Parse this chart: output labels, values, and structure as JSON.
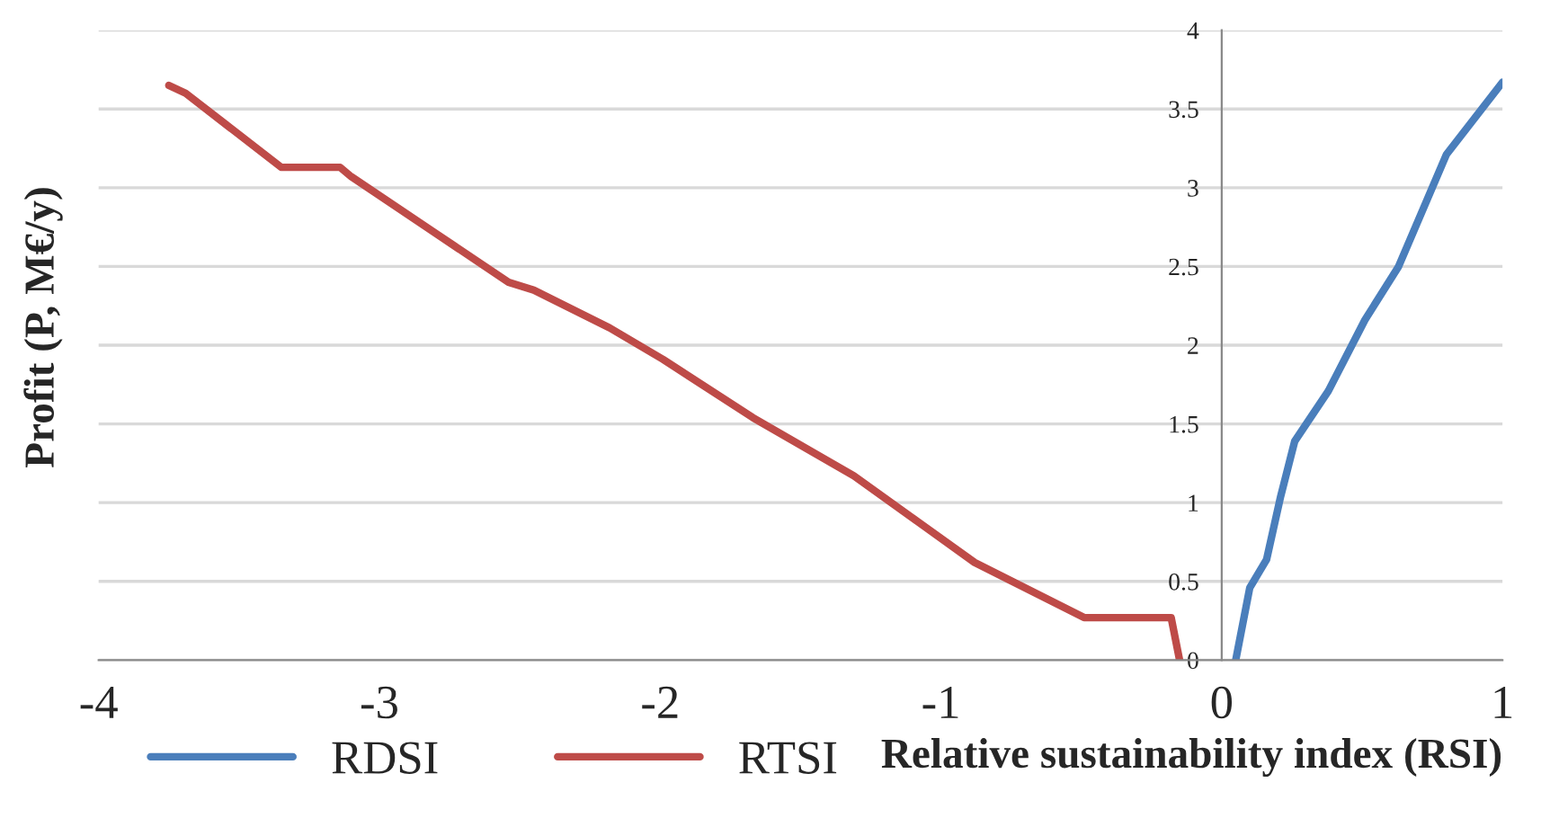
{
  "chart_data": {
    "type": "line",
    "xlabel": "Relative sustainability index (RSI)",
    "ylabel": "Profit (P, M€/y)",
    "xlim": [
      -4,
      1
    ],
    "xticks": [
      -4,
      -3,
      -2,
      -1,
      0,
      1
    ],
    "ylim": [
      0,
      4
    ],
    "yticks": [
      0,
      0.5,
      1,
      1.5,
      2,
      2.5,
      3,
      3.5,
      4
    ],
    "grid": "y",
    "legend": "bottom left",
    "marker": "none",
    "line_style": "solid",
    "series": [
      {
        "name": "RDSI",
        "color": "#4a7ebb",
        "x": [
          0.05,
          0.1,
          0.16,
          0.21,
          0.26,
          0.38,
          0.51,
          0.63,
          0.8,
          1.0
        ],
        "values": [
          0,
          0.46,
          0.64,
          1.04,
          1.39,
          1.71,
          2.16,
          2.5,
          3.21,
          3.67
        ]
      },
      {
        "name": "RTSI",
        "color": "#be4b48",
        "x": [
          -3.75,
          -3.69,
          -3.35,
          -3.14,
          -3.1,
          -2.54,
          -2.45,
          -2.18,
          -1.99,
          -1.67,
          -1.31,
          -1.06,
          -0.88,
          -0.49,
          -0.18,
          -0.15
        ],
        "values": [
          3.65,
          3.6,
          3.13,
          3.13,
          3.07,
          2.4,
          2.35,
          2.11,
          1.91,
          1.54,
          1.17,
          0.85,
          0.62,
          0.27,
          0.27,
          0
        ]
      }
    ]
  }
}
